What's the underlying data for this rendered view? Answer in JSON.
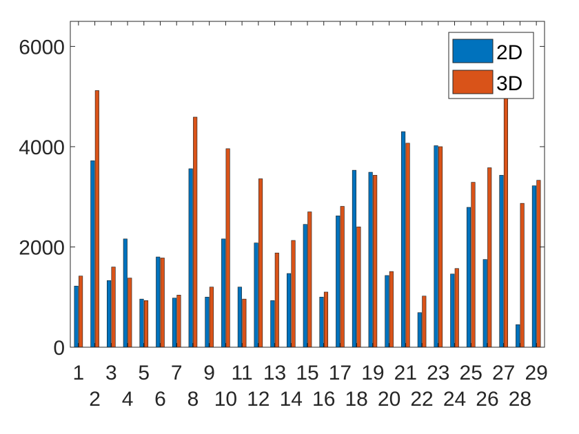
{
  "chart_data": {
    "type": "bar",
    "categories": [
      "1",
      "2",
      "3",
      "4",
      "5",
      "6",
      "7",
      "8",
      "9",
      "10",
      "11",
      "12",
      "13",
      "14",
      "15",
      "16",
      "17",
      "18",
      "19",
      "20",
      "21",
      "22",
      "23",
      "24",
      "25",
      "26",
      "27",
      "28",
      "29"
    ],
    "series": [
      {
        "name": "2D",
        "color": "#0072BD",
        "values": [
          1220,
          3720,
          1330,
          2160,
          960,
          1800,
          980,
          3560,
          1000,
          2160,
          1200,
          2080,
          930,
          1470,
          2450,
          1000,
          2620,
          3530,
          3490,
          1430,
          4300,
          690,
          4020,
          1460,
          2790,
          1750,
          3430,
          450,
          3220
        ]
      },
      {
        "name": "3D",
        "color": "#D95319",
        "values": [
          1420,
          5120,
          1600,
          1380,
          930,
          1780,
          1040,
          4590,
          1200,
          3960,
          960,
          3360,
          1880,
          2130,
          2700,
          1100,
          2810,
          2400,
          3430,
          1510,
          4070,
          1020,
          4000,
          1570,
          3290,
          3580,
          5000,
          2870,
          3330
        ]
      }
    ],
    "yticks": [
      "0",
      "2000",
      "4000",
      "6000"
    ],
    "ylim": [
      0,
      6500
    ],
    "xlabel": "",
    "ylabel": "",
    "title": "",
    "legend_position": "top-right",
    "grid": false
  }
}
